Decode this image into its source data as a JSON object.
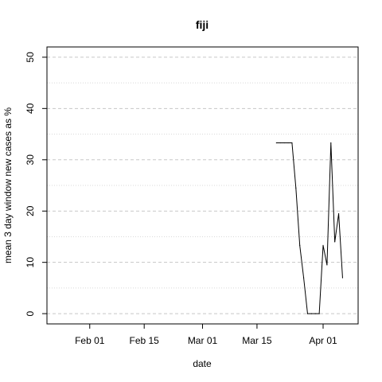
{
  "chart_data": {
    "type": "line",
    "title": "fiji",
    "xlabel": "date",
    "ylabel": "mean  3  day window new cases as %",
    "xlim": [
      "2020-01-21",
      "2020-04-10"
    ],
    "ylim": [
      -2,
      52
    ],
    "x_ticks": [
      {
        "date": "2020-02-01",
        "label": "Feb 01"
      },
      {
        "date": "2020-02-15",
        "label": "Feb 15"
      },
      {
        "date": "2020-03-01",
        "label": "Mar 01"
      },
      {
        "date": "2020-03-15",
        "label": "Mar 15"
      },
      {
        "date": "2020-04-01",
        "label": "Apr 01"
      }
    ],
    "y_ticks": [
      0,
      10,
      20,
      30,
      40,
      50
    ],
    "y_minor_gridlines": [
      5,
      15,
      25,
      35,
      45
    ],
    "grid": true,
    "series": [
      {
        "color": "#000000",
        "points": [
          {
            "x": "2020-03-20",
            "y": 33.3
          },
          {
            "x": "2020-03-21",
            "y": 33.3
          },
          {
            "x": "2020-03-22",
            "y": 33.3
          },
          {
            "x": "2020-03-23",
            "y": 33.3
          },
          {
            "x": "2020-03-24",
            "y": 33.3
          },
          {
            "x": "2020-03-25",
            "y": 24.5
          },
          {
            "x": "2020-03-26",
            "y": 13.3
          },
          {
            "x": "2020-03-27",
            "y": 7.0
          },
          {
            "x": "2020-03-28",
            "y": 0.0
          },
          {
            "x": "2020-03-29",
            "y": 0.0
          },
          {
            "x": "2020-03-30",
            "y": 0.0
          },
          {
            "x": "2020-03-31",
            "y": 0.0
          },
          {
            "x": "2020-04-01",
            "y": 13.3
          },
          {
            "x": "2020-04-02",
            "y": 9.5
          },
          {
            "x": "2020-04-03",
            "y": 33.3
          },
          {
            "x": "2020-04-04",
            "y": 14.0
          },
          {
            "x": "2020-04-05",
            "y": 19.5
          },
          {
            "x": "2020-04-06",
            "y": 7.0
          }
        ]
      }
    ]
  }
}
